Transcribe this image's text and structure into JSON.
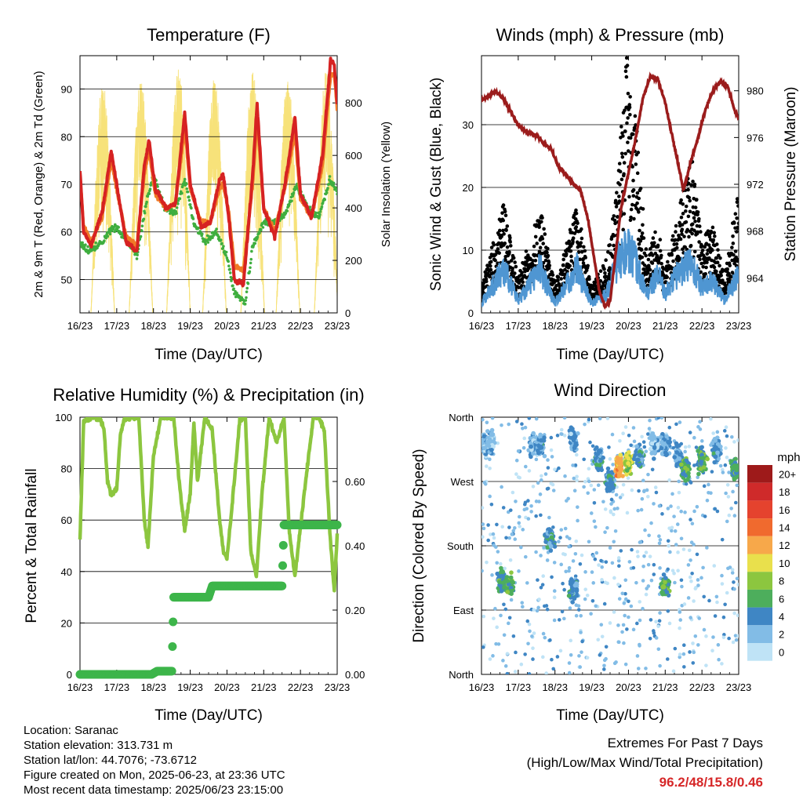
{
  "x_ticks": [
    "16/23",
    "17/23",
    "18/23",
    "19/23",
    "20/23",
    "21/23",
    "22/23",
    "23/23"
  ],
  "colors": {
    "temp2m": "#d62222",
    "temp9m": "#f07a26",
    "dewpoint": "#3fae3f",
    "solar": "#f7e27a",
    "wind": "#4f96d2",
    "gust": "#000000",
    "pressure": "#9b1c1c",
    "rh": "#8cc63f",
    "precip": "#3db54a",
    "extremes": "#d62728"
  },
  "chart_data": [
    {
      "id": "temp",
      "type": "line",
      "title": "Temperature (F)",
      "xlabel": "Time (Day/UTC)",
      "ylabel": "2m & 9m T (Red, Orange) & 2m Td (Green)",
      "ylabel_right": "Solar Insolation (Yellow)",
      "ylim": [
        43,
        97
      ],
      "yticks": [
        50,
        60,
        70,
        80,
        90
      ],
      "ylim_right": [
        0,
        980
      ],
      "yticks_right": [
        0,
        200,
        400,
        600,
        800
      ],
      "xlim": [
        0,
        7
      ],
      "series": [
        {
          "key": "t2m",
          "x": [
            0,
            0.1,
            0.3,
            0.6,
            0.85,
            1.0,
            1.25,
            1.55,
            1.75,
            1.88,
            2.05,
            2.35,
            2.6,
            2.85,
            3.0,
            3.3,
            3.55,
            3.8,
            3.9,
            4.05,
            4.2,
            4.45,
            4.7,
            4.82,
            5.0,
            5.3,
            5.6,
            5.85,
            6.0,
            6.3,
            6.6,
            6.82,
            6.92,
            7.0
          ],
          "y": [
            73,
            60,
            57,
            64,
            77,
            70,
            58,
            56,
            74,
            79,
            69,
            65,
            66,
            85,
            70,
            61,
            62,
            71,
            72,
            63,
            50,
            49,
            72,
            87,
            65,
            59,
            71,
            84,
            68,
            63,
            76,
            96,
            95,
            87
          ]
        },
        {
          "key": "t9m",
          "x": [
            0,
            0.1,
            0.3,
            0.6,
            0.85,
            1.0,
            1.25,
            1.55,
            1.75,
            1.88,
            2.05,
            2.35,
            2.6,
            2.85,
            3.0,
            3.3,
            3.55,
            3.8,
            3.9,
            4.05,
            4.2,
            4.45,
            4.7,
            4.82,
            5.0,
            5.3,
            5.6,
            5.85,
            6.0,
            6.3,
            6.6,
            6.82,
            6.92,
            7.0
          ],
          "y": [
            72,
            61,
            58,
            63,
            75,
            69,
            59,
            57,
            72,
            77,
            68,
            65,
            66,
            82,
            69,
            62,
            62,
            69,
            70,
            64,
            53,
            52,
            70,
            84,
            65,
            60,
            70,
            81,
            67,
            63,
            74,
            93,
            93,
            86
          ]
        },
        {
          "key": "td",
          "x": [
            0,
            0.2,
            0.5,
            0.8,
            1.0,
            1.3,
            1.55,
            1.8,
            2.0,
            2.3,
            2.6,
            2.85,
            3.1,
            3.4,
            3.7,
            4.0,
            4.2,
            4.5,
            4.7,
            5.0,
            5.3,
            5.6,
            5.9,
            6.2,
            6.5,
            6.8,
            7.0
          ],
          "y": [
            58,
            56,
            57,
            60,
            61,
            58,
            55,
            66,
            72,
            65,
            64,
            71,
            62,
            58,
            60,
            55,
            47,
            45,
            57,
            62,
            62,
            64,
            70,
            65,
            63,
            71,
            68
          ]
        },
        {
          "key": "solar",
          "peaks": [
            0.62,
            1.66,
            2.68,
            3.66,
            4.7,
            5.66,
            6.7
          ],
          "values": [
            880,
            900,
            940,
            900,
            920,
            910,
            920
          ]
        }
      ]
    },
    {
      "id": "wind",
      "type": "scatter",
      "title": "Winds (mph) & Pressure (mb)",
      "xlabel": "Time (Day/UTC)",
      "ylabel": "Sonic Wind & Gust (Blue, Black)",
      "ylabel_right": "Station Pressure (Maroon)",
      "ylim": [
        0,
        41
      ],
      "yticks": [
        0,
        10,
        20,
        30
      ],
      "ylim_right": [
        961,
        983
      ],
      "yticks_right": [
        964,
        968,
        972,
        976,
        980
      ],
      "xlim": [
        0,
        7
      ],
      "series": [
        {
          "key": "pressure",
          "x": [
            0,
            0.2,
            0.35,
            0.5,
            0.6,
            0.8,
            1.0,
            1.2,
            1.5,
            1.7,
            1.9,
            2.1,
            2.3,
            2.5,
            2.7,
            2.9,
            3.05,
            3.2,
            3.35,
            3.5,
            3.65,
            3.8,
            4.0,
            4.2,
            4.4,
            4.6,
            4.8,
            5.0,
            5.2,
            5.4,
            5.5,
            5.7,
            5.9,
            6.1,
            6.3,
            6.5,
            6.7,
            6.9,
            7.0
          ],
          "y": [
            979.2,
            979.5,
            980.0,
            979.6,
            979.3,
            978.2,
            977.0,
            976.5,
            976.2,
            975.5,
            975.0,
            973.5,
            972.8,
            972.0,
            971.5,
            969.0,
            966.0,
            963.0,
            961.6,
            962.0,
            966.0,
            970.0,
            973.0,
            976.0,
            979.5,
            981.2,
            981.0,
            979.0,
            976.0,
            973.0,
            971.5,
            974.0,
            976.0,
            978.5,
            980.0,
            980.8,
            980.4,
            978.2,
            977.6
          ]
        },
        {
          "key": "gust",
          "base": [
            [
              0,
              3
            ],
            [
              0.6,
              12
            ],
            [
              1.0,
              4
            ],
            [
              1.6,
              12
            ],
            [
              2.0,
              3
            ],
            [
              2.6,
              12
            ],
            [
              3.0,
              3
            ],
            [
              3.4,
              6
            ],
            [
              3.7,
              14
            ],
            [
              3.95,
              30
            ],
            [
              4.2,
              22
            ],
            [
              4.5,
              6
            ],
            [
              4.8,
              10
            ],
            [
              5.0,
              5
            ],
            [
              5.3,
              10
            ],
            [
              5.7,
              18
            ],
            [
              6.0,
              8
            ],
            [
              6.3,
              10
            ],
            [
              6.6,
              4
            ],
            [
              7.0,
              14
            ]
          ]
        },
        {
          "key": "wind",
          "base": [
            [
              0,
              1.5
            ],
            [
              0.6,
              7
            ],
            [
              1.0,
              2
            ],
            [
              1.6,
              7
            ],
            [
              2.0,
              1.5
            ],
            [
              2.6,
              7
            ],
            [
              3.0,
              1.5
            ],
            [
              3.4,
              3
            ],
            [
              3.7,
              8
            ],
            [
              3.95,
              10
            ],
            [
              4.2,
              8
            ],
            [
              4.5,
              3
            ],
            [
              4.8,
              6
            ],
            [
              5.0,
              3
            ],
            [
              5.3,
              6
            ],
            [
              5.7,
              8
            ],
            [
              6.0,
              4
            ],
            [
              6.3,
              5
            ],
            [
              6.6,
              2
            ],
            [
              7.0,
              6
            ]
          ]
        }
      ]
    },
    {
      "id": "rh",
      "type": "line",
      "title": "Relative Humidity (%) & Precipitation (in)",
      "xlabel": "Time (Day/UTC)",
      "ylabel": "Percent & Total Rainfall",
      "ylim": [
        0,
        100
      ],
      "yticks": [
        0,
        20,
        40,
        60,
        80,
        100
      ],
      "ylim_right": [
        0,
        0.8
      ],
      "yticks_right": [
        "0.00",
        "0.20",
        "0.40",
        "0.60"
      ],
      "xlim": [
        0,
        7
      ],
      "series": [
        {
          "key": "rh",
          "x": [
            0,
            0.1,
            0.2,
            0.35,
            0.55,
            0.65,
            0.75,
            0.85,
            1.0,
            1.1,
            1.2,
            1.4,
            1.6,
            1.75,
            1.85,
            2.0,
            2.2,
            2.35,
            2.55,
            2.7,
            2.85,
            3.0,
            3.1,
            3.2,
            3.4,
            3.6,
            3.8,
            3.9,
            4.0,
            4.2,
            4.35,
            4.5,
            4.65,
            4.8,
            4.95,
            5.15,
            5.35,
            5.55,
            5.7,
            5.85,
            6.1,
            6.35,
            6.5,
            6.65,
            6.8,
            6.92,
            7.0
          ],
          "y": [
            53,
            98,
            99,
            100,
            99,
            96,
            75,
            70,
            72,
            93,
            99,
            100,
            100,
            60,
            50,
            85,
            100,
            100,
            100,
            75,
            56,
            70,
            98,
            75,
            100,
            95,
            60,
            48,
            45,
            75,
            99,
            100,
            48,
            38,
            70,
            100,
            90,
            100,
            55,
            38,
            70,
            100,
            100,
            95,
            55,
            32,
            55
          ]
        },
        {
          "key": "precip",
          "x": [
            0,
            1.95,
            2.1,
            2.5,
            2.55,
            3.5,
            3.6,
            5.5,
            5.55,
            7.0
          ],
          "y": [
            0,
            0,
            0.01,
            0.01,
            0.24,
            0.24,
            0.275,
            0.275,
            0.465,
            0.465
          ]
        }
      ]
    },
    {
      "id": "dir",
      "type": "scatter",
      "title": "Wind Direction",
      "xlabel": "Time (Day/UTC)",
      "ylabel": "Direction (Colored By Speed)",
      "ylim": [
        0,
        360
      ],
      "yticks": [
        {
          "v": 0,
          "label": "North"
        },
        {
          "v": 90,
          "label": "East"
        },
        {
          "v": 180,
          "label": "South"
        },
        {
          "v": 270,
          "label": "West"
        },
        {
          "v": 360,
          "label": "North"
        }
      ],
      "xlim": [
        0,
        7
      ],
      "legend": {
        "title": "mph",
        "labels": [
          "20+",
          "18",
          "16",
          "14",
          "12",
          "10",
          "8",
          "6",
          "4",
          "2",
          "0"
        ],
        "colors": [
          "#9e1a1a",
          "#cf2a2a",
          "#e5432e",
          "#f06a2e",
          "#f7a84a",
          "#e9e04c",
          "#8cc63f",
          "#4dae5c",
          "#3f86c4",
          "#82bce6",
          "#bfe3f6"
        ]
      },
      "clusters": [
        {
          "x": 0.1,
          "dir": 320,
          "s": 2
        },
        {
          "x": 0.25,
          "dir": 325,
          "s": 2
        },
        {
          "x": 0.55,
          "dir": 130,
          "s": 5
        },
        {
          "x": 0.75,
          "dir": 125,
          "s": 6
        },
        {
          "x": 1.4,
          "dir": 320,
          "s": 2
        },
        {
          "x": 1.6,
          "dir": 320,
          "s": 3
        },
        {
          "x": 1.85,
          "dir": 190,
          "s": 4
        },
        {
          "x": 2.5,
          "dir": 120,
          "s": 4
        },
        {
          "x": 2.5,
          "dir": 330,
          "s": 3
        },
        {
          "x": 3.2,
          "dir": 300,
          "s": 4
        },
        {
          "x": 3.5,
          "dir": 270,
          "s": 4
        },
        {
          "x": 3.75,
          "dir": 290,
          "s": 12
        },
        {
          "x": 4.0,
          "dir": 295,
          "s": 9
        },
        {
          "x": 4.3,
          "dir": 305,
          "s": 4
        },
        {
          "x": 4.7,
          "dir": 320,
          "s": 2
        },
        {
          "x": 5.0,
          "dir": 320,
          "s": 3
        },
        {
          "x": 5.35,
          "dir": 305,
          "s": 3
        },
        {
          "x": 5.55,
          "dir": 285,
          "s": 6
        },
        {
          "x": 6.0,
          "dir": 300,
          "s": 6
        },
        {
          "x": 6.4,
          "dir": 315,
          "s": 3
        },
        {
          "x": 6.9,
          "dir": 285,
          "s": 6
        },
        {
          "x": 5.0,
          "dir": 125,
          "s": 6
        }
      ]
    }
  ],
  "info": {
    "location": "Location: Saranac",
    "elevation": "Station elevation: 313.731 m",
    "latlon": "Station lat/lon: 44.7076; -73.6712",
    "created": "Figure created on Mon, 2025-06-23, at 23:36 UTC",
    "recent": "Most recent data timestamp: 2025/06/23 23:15:00"
  },
  "extremes": {
    "title": "Extremes For Past 7 Days",
    "subtitle": "(High/Low/Max Wind/Total Precipitation)",
    "values": "96.2/48/15.8/0.46"
  }
}
